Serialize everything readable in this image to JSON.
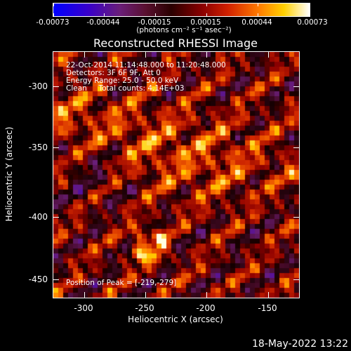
{
  "colorbar": {
    "tick_labels": [
      "-0.00073",
      "-0.00044",
      "-0.00015",
      "0.00015",
      "0.00044",
      "0.00073"
    ],
    "units": "(photons cm⁻² s⁻¹ asec⁻²)",
    "colors": [
      "#0000ff",
      "#6a1e78",
      "#2a0000",
      "#d02000",
      "#ffd000",
      "#ffffff"
    ]
  },
  "title": "Reconstructed RHESSI Image",
  "annotations": {
    "line1": "22-Oct-2014 11:14:48.000 to 11:20:48.000",
    "line2": "Detectors: 3F 6F 9F, Att 0",
    "line3": "Energy Range: 25.0 - 50.0 keV",
    "line4": "Clean     Total counts: 4.14E+03",
    "peak": "Position of Peak = [-219,-279]"
  },
  "x_axis": {
    "label": "Heliocentric X (arcsec)",
    "ticks": [
      "-300",
      "-250",
      "-200",
      "-150"
    ]
  },
  "y_axis": {
    "label": "Heliocentric Y (arcsec)",
    "ticks": [
      "-300",
      "-350",
      "-400",
      "-450"
    ]
  },
  "timestamp": "18-May-2022 13:22"
}
